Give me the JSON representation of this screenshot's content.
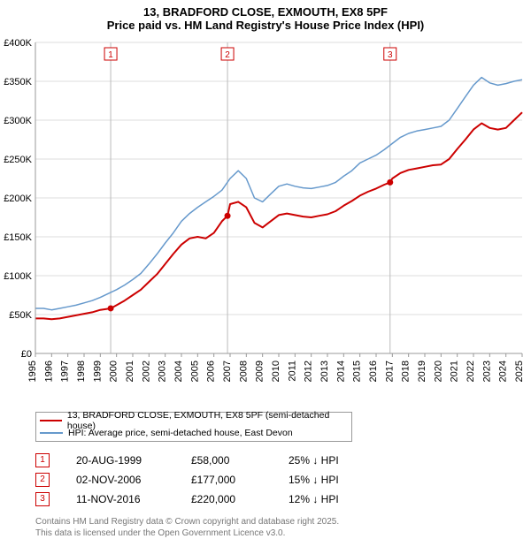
{
  "title_main": "13, BRADFORD CLOSE, EXMOUTH, EX8 5PF",
  "title_sub": "Price paid vs. HM Land Registry's House Price Index (HPI)",
  "chart": {
    "type": "line",
    "background_color": "#ffffff",
    "grid_color": "#dddddd",
    "axis_color": "#999999",
    "title_fontsize": 13,
    "x": {
      "min": 1995,
      "max": 2025,
      "ticks": [
        1995,
        1996,
        1997,
        1998,
        1999,
        2000,
        2001,
        2002,
        2003,
        2004,
        2005,
        2006,
        2007,
        2008,
        2009,
        2010,
        2011,
        2012,
        2013,
        2014,
        2015,
        2016,
        2017,
        2018,
        2019,
        2020,
        2021,
        2022,
        2023,
        2024,
        2025
      ],
      "label_fontsize": 11
    },
    "y": {
      "min": 0,
      "max": 400000,
      "ticks": [
        0,
        50000,
        100000,
        150000,
        200000,
        250000,
        300000,
        350000,
        400000
      ],
      "tick_labels": [
        "£0",
        "£50K",
        "£100K",
        "£150K",
        "£200K",
        "£250K",
        "£300K",
        "£350K",
        "£400K"
      ],
      "label_fontsize": 11
    },
    "series": [
      {
        "name": "hpi",
        "label": "HPI: Average price, semi-detached house, East Devon",
        "color": "#6699cc",
        "line_width": 1.5,
        "points": [
          [
            1995,
            58000
          ],
          [
            1995.5,
            58000
          ],
          [
            1996,
            56000
          ],
          [
            1996.5,
            58000
          ],
          [
            1997,
            60000
          ],
          [
            1997.5,
            62000
          ],
          [
            1998,
            65000
          ],
          [
            1998.5,
            68000
          ],
          [
            1999,
            72000
          ],
          [
            1999.5,
            77000
          ],
          [
            2000,
            82000
          ],
          [
            2000.5,
            88000
          ],
          [
            2001,
            95000
          ],
          [
            2001.5,
            103000
          ],
          [
            2002,
            115000
          ],
          [
            2002.5,
            128000
          ],
          [
            2003,
            142000
          ],
          [
            2003.5,
            155000
          ],
          [
            2004,
            170000
          ],
          [
            2004.5,
            180000
          ],
          [
            2005,
            188000
          ],
          [
            2005.5,
            195000
          ],
          [
            2006,
            202000
          ],
          [
            2006.5,
            210000
          ],
          [
            2007,
            225000
          ],
          [
            2007.5,
            235000
          ],
          [
            2008,
            225000
          ],
          [
            2008.5,
            200000
          ],
          [
            2009,
            195000
          ],
          [
            2009.5,
            205000
          ],
          [
            2010,
            215000
          ],
          [
            2010.5,
            218000
          ],
          [
            2011,
            215000
          ],
          [
            2011.5,
            213000
          ],
          [
            2012,
            212000
          ],
          [
            2012.5,
            214000
          ],
          [
            2013,
            216000
          ],
          [
            2013.5,
            220000
          ],
          [
            2014,
            228000
          ],
          [
            2014.5,
            235000
          ],
          [
            2015,
            245000
          ],
          [
            2015.5,
            250000
          ],
          [
            2016,
            255000
          ],
          [
            2016.5,
            262000
          ],
          [
            2017,
            270000
          ],
          [
            2017.5,
            278000
          ],
          [
            2018,
            283000
          ],
          [
            2018.5,
            286000
          ],
          [
            2019,
            288000
          ],
          [
            2019.5,
            290000
          ],
          [
            2020,
            292000
          ],
          [
            2020.5,
            300000
          ],
          [
            2021,
            315000
          ],
          [
            2021.5,
            330000
          ],
          [
            2022,
            345000
          ],
          [
            2022.5,
            355000
          ],
          [
            2023,
            348000
          ],
          [
            2023.5,
            345000
          ],
          [
            2024,
            347000
          ],
          [
            2024.5,
            350000
          ],
          [
            2025,
            352000
          ]
        ]
      },
      {
        "name": "price",
        "label": "13, BRADFORD CLOSE, EXMOUTH, EX8 5PF (semi-detached house)",
        "color": "#cc0000",
        "line_width": 2,
        "points": [
          [
            1995,
            45000
          ],
          [
            1995.5,
            45000
          ],
          [
            1996,
            44000
          ],
          [
            1996.5,
            45000
          ],
          [
            1997,
            47000
          ],
          [
            1997.5,
            49000
          ],
          [
            1998,
            51000
          ],
          [
            1998.5,
            53000
          ],
          [
            1999,
            56000
          ],
          [
            1999.64,
            58000
          ],
          [
            2000,
            62000
          ],
          [
            2000.5,
            68000
          ],
          [
            2001,
            75000
          ],
          [
            2001.5,
            82000
          ],
          [
            2002,
            92000
          ],
          [
            2002.5,
            102000
          ],
          [
            2003,
            115000
          ],
          [
            2003.5,
            128000
          ],
          [
            2004,
            140000
          ],
          [
            2004.5,
            148000
          ],
          [
            2005,
            150000
          ],
          [
            2005.5,
            148000
          ],
          [
            2006,
            155000
          ],
          [
            2006.5,
            170000
          ],
          [
            2006.84,
            177000
          ],
          [
            2007,
            192000
          ],
          [
            2007.5,
            195000
          ],
          [
            2008,
            188000
          ],
          [
            2008.5,
            168000
          ],
          [
            2009,
            162000
          ],
          [
            2009.5,
            170000
          ],
          [
            2010,
            178000
          ],
          [
            2010.5,
            180000
          ],
          [
            2011,
            178000
          ],
          [
            2011.5,
            176000
          ],
          [
            2012,
            175000
          ],
          [
            2012.5,
            177000
          ],
          [
            2013,
            179000
          ],
          [
            2013.5,
            183000
          ],
          [
            2014,
            190000
          ],
          [
            2014.5,
            196000
          ],
          [
            2015,
            203000
          ],
          [
            2015.5,
            208000
          ],
          [
            2016,
            212000
          ],
          [
            2016.5,
            217000
          ],
          [
            2016.86,
            220000
          ],
          [
            2017,
            225000
          ],
          [
            2017.5,
            232000
          ],
          [
            2018,
            236000
          ],
          [
            2018.5,
            238000
          ],
          [
            2019,
            240000
          ],
          [
            2019.5,
            242000
          ],
          [
            2020,
            243000
          ],
          [
            2020.5,
            250000
          ],
          [
            2021,
            263000
          ],
          [
            2021.5,
            275000
          ],
          [
            2022,
            288000
          ],
          [
            2022.5,
            296000
          ],
          [
            2023,
            290000
          ],
          [
            2023.5,
            288000
          ],
          [
            2024,
            290000
          ],
          [
            2024.5,
            300000
          ],
          [
            2025,
            310000
          ]
        ]
      }
    ],
    "markers": [
      {
        "n": "1",
        "x": 1999.64,
        "y": 58000
      },
      {
        "n": "2",
        "x": 2006.84,
        "y": 177000
      },
      {
        "n": "3",
        "x": 2016.86,
        "y": 220000
      }
    ],
    "marker_border_color": "#cc0000",
    "marker_text_color": "#cc0000",
    "vline_color": "#bbbbbb"
  },
  "legend_border_color": "#999999",
  "sales": [
    {
      "n": "1",
      "date": "20-AUG-1999",
      "price": "£58,000",
      "rel": "25% ↓ HPI"
    },
    {
      "n": "2",
      "date": "02-NOV-2006",
      "price": "£177,000",
      "rel": "15% ↓ HPI"
    },
    {
      "n": "3",
      "date": "11-NOV-2016",
      "price": "£220,000",
      "rel": "12% ↓ HPI"
    }
  ],
  "footer_line1": "Contains HM Land Registry data © Crown copyright and database right 2025.",
  "footer_line2": "This data is licensed under the Open Government Licence v3.0."
}
